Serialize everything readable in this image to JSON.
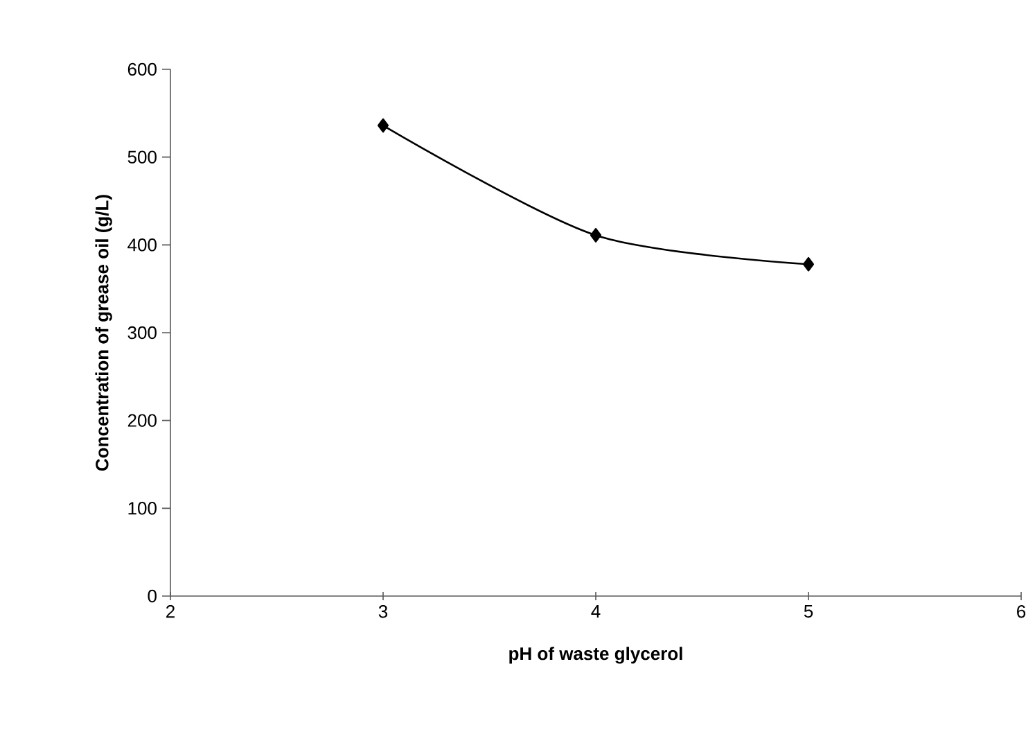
{
  "chart_data": {
    "type": "line",
    "xlabel": "pH of waste glycerol",
    "ylabel": "Concentration of grease oil (g/L)",
    "x": [
      3,
      4,
      5
    ],
    "series": [
      {
        "color": "#000000",
        "values": [
          536,
          411,
          378
        ]
      }
    ],
    "xlim": [
      2,
      6
    ],
    "ylim": [
      0,
      600
    ],
    "xticks": [
      2,
      3,
      4,
      5,
      6
    ],
    "yticks": [
      0,
      100,
      200,
      300,
      400,
      500,
      600
    ],
    "grid": false,
    "marker": "diamond",
    "line_style": "solid"
  }
}
